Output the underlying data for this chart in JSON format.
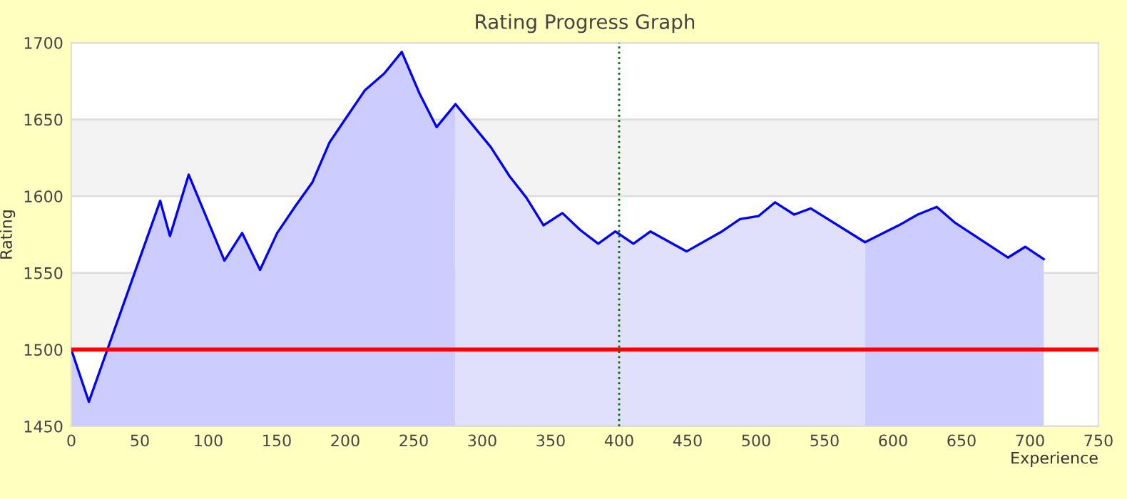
{
  "chart_data": {
    "type": "area",
    "title": "Rating Progress Graph",
    "xlabel": "Experience",
    "ylabel": "Rating",
    "series": [
      {
        "color": "#ccccff",
        "x": [
          0,
          12.8,
          64.9,
          72,
          85.7,
          111.8,
          124.7,
          137.8,
          150.3,
          163.2,
          176,
          188.5,
          201.4,
          214.3,
          228.5,
          241.3,
          254.2,
          266.7,
          280.5
        ],
        "values": [
          1500,
          1466,
          1597,
          1574,
          1614,
          1558,
          1576,
          1552,
          1576,
          1593,
          1609,
          1635,
          1652,
          1669,
          1680,
          1694,
          1667,
          1645,
          1660
        ]
      },
      {
        "color": "#e0e0fc",
        "x": [
          280.5,
          306.3,
          320,
          332.3,
          344.8,
          358.6,
          371.5,
          384.7,
          397.2,
          410.4,
          422.9,
          449.3,
          475,
          488.2,
          501.7,
          513.9,
          527.8,
          539.9,
          579.5
        ],
        "values": [
          1660,
          1632,
          1613,
          1599,
          1581,
          1589,
          1578,
          1569,
          1577,
          1569,
          1577,
          1564,
          1577,
          1585,
          1587,
          1596,
          1588,
          1592,
          1570
        ]
      },
      {
        "color": "#ccccff",
        "x": [
          579.5,
          604.2,
          618,
          631.9,
          644.8,
          684,
          696.5,
          710
        ],
        "values": [
          1570,
          1581,
          1588,
          1593,
          1583,
          1560,
          1567,
          1559
        ]
      },
      {
        "type": "line",
        "color": "#0000ff",
        "x": [
          0,
          12.8,
          64.9,
          72,
          85.7,
          111.8,
          124.7,
          137.8,
          150.3,
          163.2,
          176,
          188.5,
          201.4,
          214.3,
          228.5,
          241.3,
          254.2,
          266.7,
          280.5,
          306.3,
          320,
          332.3,
          344.8,
          358.6,
          371.5,
          384.7,
          397.2,
          410.4,
          422.9,
          449.3,
          475,
          488.2,
          501.7,
          513.9,
          527.8,
          539.9,
          579.5,
          604.2,
          618,
          631.9,
          644.8,
          684,
          696.5,
          710
        ],
        "values": [
          1500,
          1466,
          1597,
          1574,
          1614,
          1558,
          1576,
          1552,
          1576,
          1593,
          1609,
          1635,
          1652,
          1669,
          1680,
          1694,
          1667,
          1645,
          1660,
          1632,
          1613,
          1599,
          1581,
          1589,
          1578,
          1569,
          1577,
          1569,
          1577,
          1564,
          1577,
          1585,
          1587,
          1596,
          1588,
          1592,
          1570,
          1581,
          1588,
          1593,
          1583,
          1560,
          1567,
          1559
        ]
      }
    ],
    "xlim": [
      0,
      750
    ],
    "xticks": [
      0,
      50,
      100,
      150,
      200,
      250,
      300,
      350,
      400,
      450,
      500,
      550,
      600,
      650,
      700,
      750
    ],
    "ylim": [
      1450,
      1700
    ],
    "yticks": [
      1450,
      1500,
      1550,
      1600,
      1650,
      1700
    ],
    "grid": "y",
    "ref_lines": [
      {
        "axis": "y",
        "value": 1500,
        "label": null,
        "color": "#ff0000",
        "line_style": "solid"
      },
      {
        "axis": "x",
        "value": 400,
        "label": null,
        "color": "#007000",
        "line_style": "dotted"
      }
    ]
  }
}
